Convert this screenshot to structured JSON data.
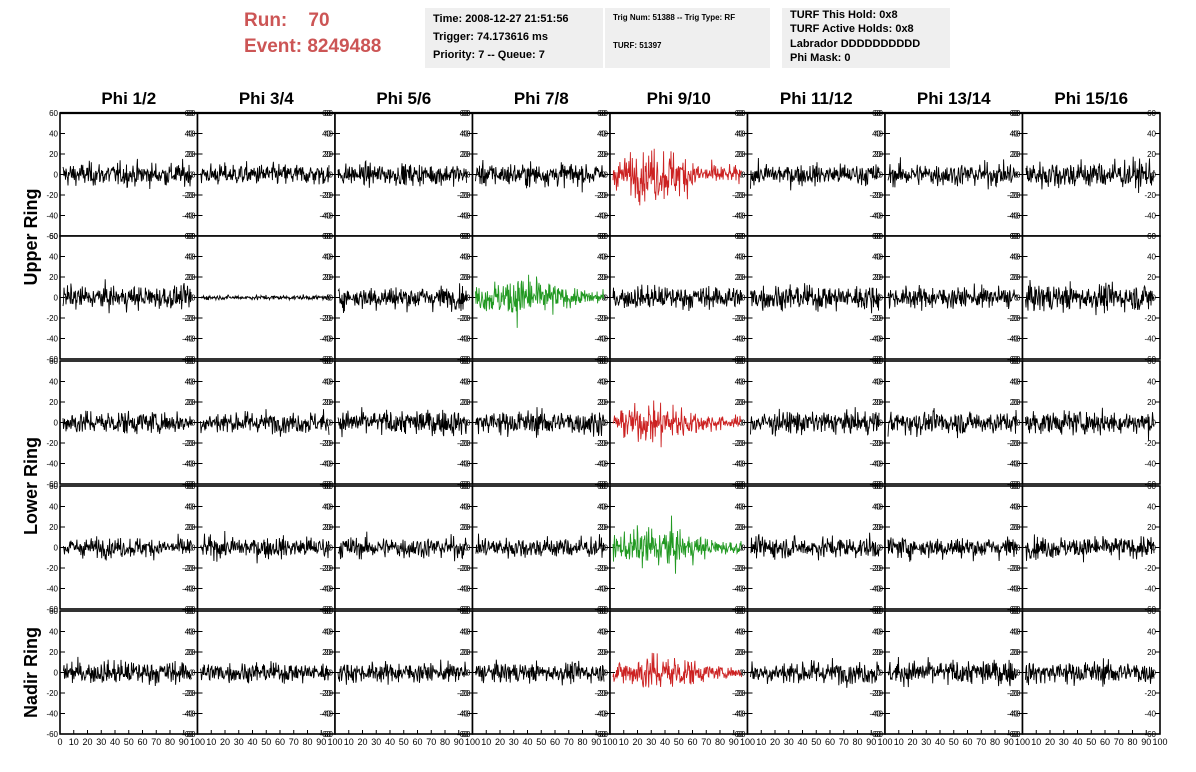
{
  "header": {
    "run_label": "Run:",
    "run_value": "70",
    "event_label": "Event:",
    "event_value": "8249488",
    "time": "Time: 2008-12-27 21:51:56",
    "trigger": "Trigger: 74.173616 ms",
    "priority": "Priority: 7 -- Queue: 7",
    "trig_num": "Trig Num: 51388 -- Trig Type: RF",
    "turf": "TURF: 51397",
    "turf_this_hold": "TURF This Hold: 0x8",
    "turf_active_holds": "TURF Active Holds: 0x8",
    "labrador": "Labrador DDDDDDDDDD",
    "phi_mask": "Phi Mask: 0"
  },
  "colors": {
    "title_red": "#cc5555",
    "trace_default": "#000000",
    "trace_red": "#cc2222",
    "trace_green": "#229922",
    "info_bg": "#efefef"
  },
  "chart_data": {
    "type": "line",
    "columns": [
      "Phi 1/2",
      "Phi 3/4",
      "Phi 5/6",
      "Phi 7/8",
      "Phi 9/10",
      "Phi 11/12",
      "Phi 13/14",
      "Phi 15/16"
    ],
    "row_labels": [
      "Upper Ring",
      "Lower Ring",
      "Nadir Ring"
    ],
    "ylim": [
      -60,
      60
    ],
    "yticks": [
      -60,
      -40,
      -20,
      0,
      20,
      40,
      60
    ],
    "xlim": [
      0,
      100
    ],
    "xticks": [
      0,
      10,
      20,
      30,
      40,
      50,
      60,
      70,
      80,
      90,
      100
    ],
    "samples": 260,
    "panels": [
      {
        "row": 0,
        "col": 0,
        "color": "black",
        "amp": 13,
        "profile": "flat",
        "max": 36
      },
      {
        "row": 0,
        "col": 1,
        "color": "black",
        "amp": 12,
        "profile": "flat",
        "max": 28
      },
      {
        "row": 0,
        "col": 2,
        "color": "black",
        "amp": 12,
        "profile": "flat",
        "max": 30
      },
      {
        "row": 0,
        "col": 3,
        "color": "black",
        "amp": 13,
        "profile": "flat",
        "max": 34
      },
      {
        "row": 0,
        "col": 4,
        "color": "red",
        "amp": 23,
        "profile": "burst",
        "max": 40
      },
      {
        "row": 0,
        "col": 5,
        "color": "black",
        "amp": 12,
        "profile": "flat",
        "max": 28
      },
      {
        "row": 0,
        "col": 6,
        "color": "black",
        "amp": 13,
        "profile": "flat",
        "max": 32
      },
      {
        "row": 0,
        "col": 7,
        "color": "black",
        "amp": 16,
        "profile": "flat",
        "max": 46
      },
      {
        "row": 1,
        "col": 0,
        "color": "black",
        "amp": 13,
        "profile": "flat",
        "max": 32
      },
      {
        "row": 1,
        "col": 1,
        "color": "black",
        "amp": 2.5,
        "profile": "flat",
        "max": 8
      },
      {
        "row": 1,
        "col": 2,
        "color": "black",
        "amp": 13,
        "profile": "flat",
        "max": 30
      },
      {
        "row": 1,
        "col": 3,
        "color": "green",
        "amp": 19,
        "profile": "burst",
        "max": 42
      },
      {
        "row": 1,
        "col": 4,
        "color": "black",
        "amp": 13,
        "profile": "flat",
        "max": 32
      },
      {
        "row": 1,
        "col": 5,
        "color": "black",
        "amp": 14,
        "profile": "flat",
        "max": 36
      },
      {
        "row": 1,
        "col": 6,
        "color": "black",
        "amp": 12,
        "profile": "flat",
        "max": 30
      },
      {
        "row": 1,
        "col": 7,
        "color": "black",
        "amp": 15,
        "profile": "flat",
        "max": 42
      },
      {
        "row": 2,
        "col": 0,
        "color": "black",
        "amp": 13,
        "profile": "flat",
        "max": 32
      },
      {
        "row": 2,
        "col": 1,
        "color": "black",
        "amp": 12,
        "profile": "flat",
        "max": 28
      },
      {
        "row": 2,
        "col": 2,
        "color": "black",
        "amp": 14,
        "profile": "flat",
        "max": 34
      },
      {
        "row": 2,
        "col": 3,
        "color": "black",
        "amp": 14,
        "profile": "flat",
        "max": 34
      },
      {
        "row": 2,
        "col": 4,
        "color": "red",
        "amp": 18,
        "profile": "burst",
        "max": 36
      },
      {
        "row": 2,
        "col": 5,
        "color": "black",
        "amp": 13,
        "profile": "flat",
        "max": 30
      },
      {
        "row": 2,
        "col": 6,
        "color": "black",
        "amp": 13,
        "profile": "flat",
        "max": 32
      },
      {
        "row": 2,
        "col": 7,
        "color": "black",
        "amp": 13,
        "profile": "flat",
        "max": 32
      },
      {
        "row": 3,
        "col": 0,
        "color": "black",
        "amp": 11,
        "profile": "flat",
        "max": 26
      },
      {
        "row": 3,
        "col": 1,
        "color": "black",
        "amp": 12,
        "profile": "flat",
        "max": 28
      },
      {
        "row": 3,
        "col": 2,
        "color": "black",
        "amp": 12,
        "profile": "flat",
        "max": 28
      },
      {
        "row": 3,
        "col": 3,
        "color": "black",
        "amp": 12,
        "profile": "flat",
        "max": 30
      },
      {
        "row": 3,
        "col": 4,
        "color": "green",
        "amp": 19,
        "profile": "burst",
        "max": 36
      },
      {
        "row": 3,
        "col": 5,
        "color": "black",
        "amp": 12,
        "profile": "flat",
        "max": 28
      },
      {
        "row": 3,
        "col": 6,
        "color": "black",
        "amp": 12,
        "profile": "flat",
        "max": 28
      },
      {
        "row": 3,
        "col": 7,
        "color": "black",
        "amp": 12,
        "profile": "flat",
        "max": 28
      },
      {
        "row": 4,
        "col": 0,
        "color": "black",
        "amp": 13,
        "profile": "flat",
        "max": 30
      },
      {
        "row": 4,
        "col": 1,
        "color": "black",
        "amp": 11,
        "profile": "flat",
        "max": 24
      },
      {
        "row": 4,
        "col": 2,
        "color": "black",
        "amp": 11,
        "profile": "flat",
        "max": 26
      },
      {
        "row": 4,
        "col": 3,
        "color": "black",
        "amp": 11,
        "profile": "flat",
        "max": 26
      },
      {
        "row": 4,
        "col": 4,
        "color": "red",
        "amp": 17,
        "profile": "burst",
        "max": 30
      },
      {
        "row": 4,
        "col": 5,
        "color": "black",
        "amp": 13,
        "profile": "flat",
        "max": 30
      },
      {
        "row": 4,
        "col": 6,
        "color": "black",
        "amp": 14,
        "profile": "flat",
        "max": 46
      },
      {
        "row": 4,
        "col": 7,
        "color": "black",
        "amp": 13,
        "profile": "flat",
        "max": 30
      }
    ]
  }
}
